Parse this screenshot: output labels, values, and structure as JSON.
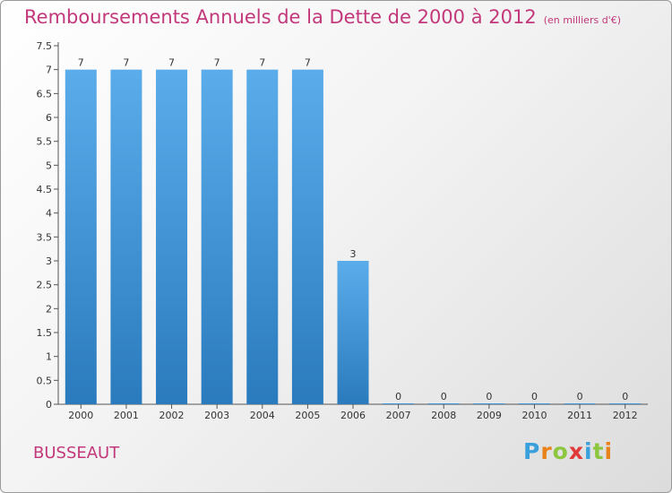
{
  "title": "Remboursements Annuels de la Dette de 2000 à 2012",
  "unit": "(en milliers d'€)",
  "commune": "BUSSEAUT",
  "logo": {
    "letters": [
      "P",
      "r",
      "o",
      "x",
      "i",
      "t",
      "i"
    ],
    "colors": [
      "#3aa0dc",
      "#e8821a",
      "#8dc63f",
      "#e03a3a",
      "#3aa0dc",
      "#8dc63f",
      "#e8821a"
    ]
  },
  "chart_data": {
    "type": "bar",
    "categories": [
      "2000",
      "2001",
      "2002",
      "2003",
      "2004",
      "2005",
      "2006",
      "2007",
      "2008",
      "2009",
      "2010",
      "2011",
      "2012"
    ],
    "values": [
      7,
      7,
      7,
      7,
      7,
      7,
      3,
      0,
      0,
      0,
      0,
      0,
      0
    ],
    "value_labels": [
      "7",
      "7",
      "7",
      "7",
      "7",
      "7",
      "3",
      "0",
      "0",
      "0",
      "0",
      "0",
      "0"
    ],
    "title": "Remboursements Annuels de la Dette de 2000 à 2012",
    "xlabel": "",
    "ylabel": "",
    "ylim": [
      0,
      7.5
    ],
    "yticks": [
      "0",
      "0.5",
      "1",
      "1.5",
      "2",
      "2.5",
      "3",
      "3.5",
      "4",
      "4.5",
      "5",
      "5.5",
      "6",
      "6.5",
      "7",
      "7.5"
    ],
    "bar_color": "#3d95d8",
    "grid": false
  }
}
